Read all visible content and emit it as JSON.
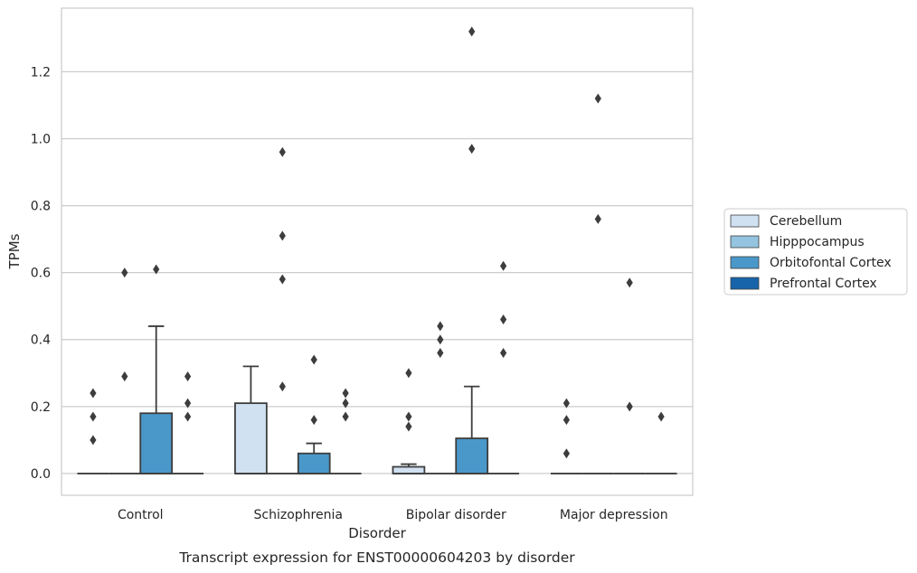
{
  "caption": "Transcript expression for ENST00000604203 by disorder",
  "chart_data": {
    "type": "box",
    "title": "",
    "xlabel": "Disorder",
    "ylabel": "TPMs",
    "ylim": [
      -0.065,
      1.39
    ],
    "yticks": [
      0.0,
      0.2,
      0.4,
      0.6,
      0.8,
      1.0,
      1.2
    ],
    "ytick_labels": [
      "0.0",
      "0.2",
      "0.4",
      "0.6",
      "0.8",
      "1.0",
      "1.2"
    ],
    "grid": "horizontal",
    "legend_position": "right",
    "categories": [
      "Control",
      "Schizophrenia",
      "Bipolar disorder",
      "Major depression"
    ],
    "series": [
      {
        "name": "Cerebellum",
        "color": "#d0e1f2",
        "boxes": [
          {
            "category": "Control",
            "q1": 0,
            "median": 0,
            "q3": 0,
            "whisker_low": 0,
            "whisker_high": 0,
            "outliers": [
              0.1,
              0.17,
              0.24
            ]
          },
          {
            "category": "Schizophrenia",
            "q1": 0,
            "median": 0,
            "q3": 0.21,
            "whisker_low": 0,
            "whisker_high": 0.32,
            "outliers": []
          },
          {
            "category": "Bipolar disorder",
            "q1": 0,
            "median": 0,
            "q3": 0.02,
            "whisker_low": 0,
            "whisker_high": 0.028,
            "outliers": [
              0.14,
              0.17,
              0.3
            ]
          },
          {
            "category": "Major depression",
            "q1": 0,
            "median": 0,
            "q3": 0,
            "whisker_low": 0,
            "whisker_high": 0,
            "outliers": [
              0.06,
              0.16,
              0.21
            ]
          }
        ]
      },
      {
        "name": "Hipppocampus",
        "color": "#94c4df",
        "boxes": [
          {
            "category": "Control",
            "q1": 0,
            "median": 0,
            "q3": 0,
            "whisker_low": 0,
            "whisker_high": 0,
            "outliers": [
              0.29,
              0.6
            ]
          },
          {
            "category": "Schizophrenia",
            "q1": 0,
            "median": 0,
            "q3": 0,
            "whisker_low": 0,
            "whisker_high": 0,
            "outliers": [
              0.26,
              0.58,
              0.71,
              0.96
            ]
          },
          {
            "category": "Bipolar disorder",
            "q1": 0,
            "median": 0,
            "q3": 0,
            "whisker_low": 0,
            "whisker_high": 0,
            "outliers": [
              0.36,
              0.4,
              0.44
            ]
          },
          {
            "category": "Major depression",
            "q1": 0,
            "median": 0,
            "q3": 0,
            "whisker_low": 0,
            "whisker_high": 0,
            "outliers": [
              0.76,
              1.12
            ]
          }
        ]
      },
      {
        "name": "Orbitofontal Cortex",
        "color": "#4a98c9",
        "boxes": [
          {
            "category": "Control",
            "q1": 0,
            "median": 0,
            "q3": 0.18,
            "whisker_low": 0,
            "whisker_high": 0.44,
            "outliers": [
              0.61
            ]
          },
          {
            "category": "Schizophrenia",
            "q1": 0,
            "median": 0,
            "q3": 0.06,
            "whisker_low": 0,
            "whisker_high": 0.09,
            "outliers": [
              0.16,
              0.34
            ]
          },
          {
            "category": "Bipolar disorder",
            "q1": 0,
            "median": 0,
            "q3": 0.105,
            "whisker_low": 0,
            "whisker_high": 0.26,
            "outliers": [
              0.97,
              1.32
            ]
          },
          {
            "category": "Major depression",
            "q1": 0,
            "median": 0,
            "q3": 0,
            "whisker_low": 0,
            "whisker_high": 0,
            "outliers": [
              0.2,
              0.57
            ]
          }
        ]
      },
      {
        "name": "Prefrontal Cortex",
        "color": "#1764ab",
        "boxes": [
          {
            "category": "Control",
            "q1": 0,
            "median": 0,
            "q3": 0,
            "whisker_low": 0,
            "whisker_high": 0,
            "outliers": [
              0.17,
              0.21,
              0.29
            ]
          },
          {
            "category": "Schizophrenia",
            "q1": 0,
            "median": 0,
            "q3": 0,
            "whisker_low": 0,
            "whisker_high": 0,
            "outliers": [
              0.17,
              0.21,
              0.24
            ]
          },
          {
            "category": "Bipolar disorder",
            "q1": 0,
            "median": 0,
            "q3": 0,
            "whisker_low": 0,
            "whisker_high": 0,
            "outliers": [
              0.36,
              0.46,
              0.62
            ]
          },
          {
            "category": "Major depression",
            "q1": 0,
            "median": 0,
            "q3": 0,
            "whisker_low": 0,
            "whisker_high": 0,
            "outliers": [
              0.17
            ]
          }
        ]
      }
    ]
  }
}
